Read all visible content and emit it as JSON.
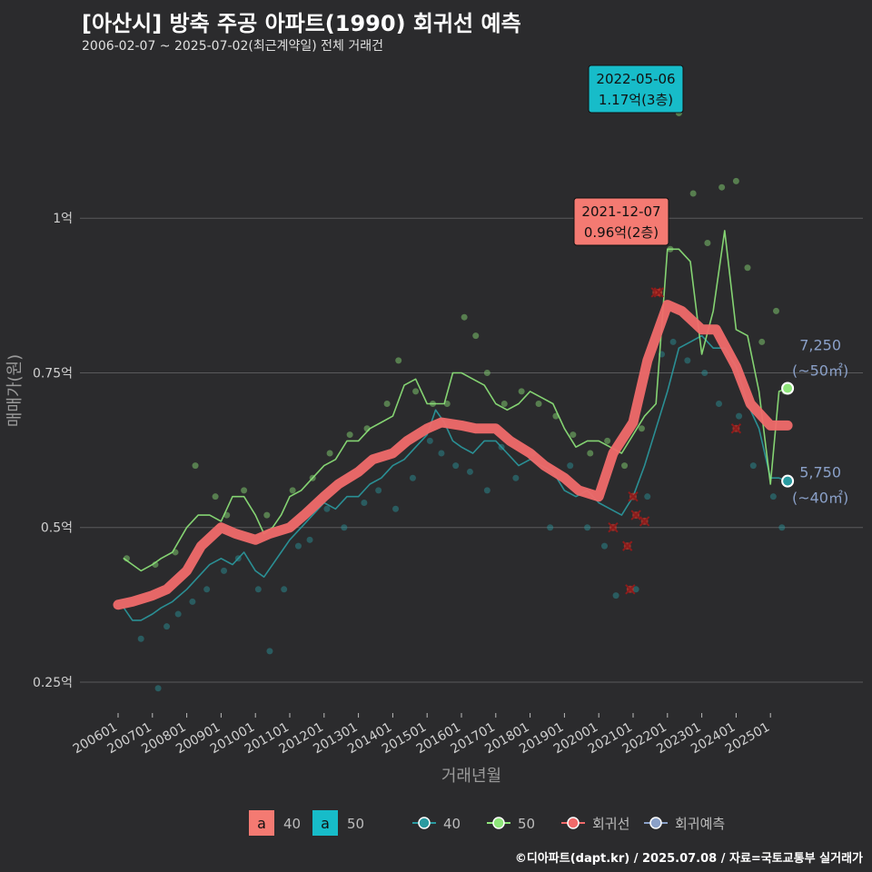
{
  "header": {
    "title": "[아산시] 방축 주공 아파트(1990) 회귀선 예측",
    "subtitle": "2006-02-07 ~ 2025-07-02(최근계약일) 전체 거래건"
  },
  "caption": "©디아파트(dapt.kr) / 2025.07.08 / 자료=국토교통부 실거래가",
  "colors": {
    "background": "#2b2b2d",
    "grid": "#5a5a5c",
    "series40": "#2a9aa0",
    "series50": "#8ee57a",
    "regression": "#f06a6a",
    "forecast": "#8aa0c8",
    "annotation40": "#f47a72",
    "annotation50": "#17bcc9"
  },
  "chart_data": {
    "type": "scatter",
    "xlabel": "거래년월",
    "ylabel": "매매가(원)",
    "x_range": [
      "2006-01",
      "2025-12"
    ],
    "ylim": [
      0.2,
      1.25
    ],
    "y_ticks": [
      {
        "value": 0.25,
        "label": "0.25억"
      },
      {
        "value": 0.5,
        "label": "0.5억"
      },
      {
        "value": 0.75,
        "label": "0.75억"
      },
      {
        "value": 1.0,
        "label": "1억"
      }
    ],
    "x_ticks": [
      "200601",
      "200701",
      "200801",
      "200901",
      "201001",
      "201101",
      "201201",
      "201301",
      "201401",
      "201501",
      "201601",
      "201701",
      "201801",
      "201901",
      "202001",
      "202101",
      "202201",
      "202301",
      "202401",
      "202501"
    ],
    "grid": true,
    "legend": {
      "position": "bottom",
      "fill_items": [
        {
          "key": "a",
          "label": "40",
          "color": "#f47a72"
        },
        {
          "key": "a",
          "label": "50",
          "color": "#17bcc9"
        }
      ],
      "line_items": [
        {
          "label": "40",
          "color": "#2a9aa0"
        },
        {
          "label": "50",
          "color": "#8ee57a"
        },
        {
          "label": "회귀선",
          "color": "#f06a6a"
        },
        {
          "label": "회귀예측",
          "color": "#8aa0c8"
        }
      ]
    },
    "series": [
      {
        "name": "40",
        "color": "#2a9aa0",
        "x": [
          "2006-03",
          "2006-06",
          "2006-09",
          "2007-01",
          "2007-04",
          "2007-08",
          "2008-01",
          "2008-05",
          "2008-09",
          "2009-01",
          "2009-05",
          "2009-09",
          "2010-01",
          "2010-04",
          "2010-07",
          "2010-10",
          "2011-01",
          "2011-05",
          "2011-09",
          "2012-01",
          "2012-05",
          "2012-09",
          "2013-01",
          "2013-05",
          "2013-09",
          "2014-01",
          "2014-05",
          "2014-09",
          "2015-01",
          "2015-04",
          "2015-07",
          "2015-10",
          "2016-01",
          "2016-05",
          "2016-09",
          "2017-01",
          "2017-05",
          "2017-09",
          "2018-01",
          "2018-05",
          "2018-09",
          "2019-01",
          "2019-05",
          "2019-09",
          "2020-01",
          "2020-05",
          "2020-09",
          "2021-01",
          "2021-05",
          "2021-09",
          "2022-01",
          "2022-05",
          "2022-09",
          "2023-01",
          "2023-05",
          "2023-09",
          "2024-01",
          "2024-05",
          "2024-09",
          "2025-01",
          "2025-04",
          "2025-07"
        ],
        "y": [
          0.37,
          0.35,
          0.35,
          0.36,
          0.37,
          0.38,
          0.4,
          0.42,
          0.44,
          0.45,
          0.44,
          0.46,
          0.43,
          0.42,
          0.44,
          0.46,
          0.48,
          0.5,
          0.52,
          0.54,
          0.53,
          0.55,
          0.55,
          0.57,
          0.58,
          0.6,
          0.61,
          0.63,
          0.65,
          0.69,
          0.67,
          0.64,
          0.63,
          0.62,
          0.64,
          0.64,
          0.62,
          0.6,
          0.61,
          0.6,
          0.59,
          0.56,
          0.55,
          0.56,
          0.54,
          0.53,
          0.52,
          0.55,
          0.6,
          0.66,
          0.72,
          0.79,
          0.8,
          0.81,
          0.79,
          0.79,
          0.76,
          0.7,
          0.66,
          0.58,
          0.58,
          0.575
        ]
      },
      {
        "name": "50",
        "color": "#8ee57a",
        "x": [
          "2006-03",
          "2006-06",
          "2006-09",
          "2007-01",
          "2007-04",
          "2007-08",
          "2008-01",
          "2008-05",
          "2008-09",
          "2009-01",
          "2009-05",
          "2009-09",
          "2010-01",
          "2010-04",
          "2010-07",
          "2010-10",
          "2011-01",
          "2011-05",
          "2011-09",
          "2012-01",
          "2012-05",
          "2012-09",
          "2013-01",
          "2013-05",
          "2013-09",
          "2014-01",
          "2014-05",
          "2014-09",
          "2015-01",
          "2015-04",
          "2015-07",
          "2015-10",
          "2016-01",
          "2016-05",
          "2016-09",
          "2017-01",
          "2017-05",
          "2017-09",
          "2018-01",
          "2018-05",
          "2018-09",
          "2019-01",
          "2019-05",
          "2019-09",
          "2020-01",
          "2020-05",
          "2020-09",
          "2021-01",
          "2021-05",
          "2021-09",
          "2022-01",
          "2022-05",
          "2022-09",
          "2023-01",
          "2023-05",
          "2023-09",
          "2024-01",
          "2024-05",
          "2024-09",
          "2025-01",
          "2025-04",
          "2025-07"
        ],
        "y": [
          0.45,
          0.44,
          0.43,
          0.44,
          0.45,
          0.46,
          0.5,
          0.52,
          0.52,
          0.51,
          0.55,
          0.55,
          0.52,
          0.49,
          0.5,
          0.52,
          0.55,
          0.56,
          0.58,
          0.6,
          0.61,
          0.64,
          0.64,
          0.66,
          0.67,
          0.68,
          0.73,
          0.74,
          0.7,
          0.7,
          0.7,
          0.75,
          0.75,
          0.74,
          0.73,
          0.7,
          0.69,
          0.7,
          0.72,
          0.71,
          0.7,
          0.66,
          0.63,
          0.64,
          0.64,
          0.63,
          0.62,
          0.65,
          0.68,
          0.7,
          0.95,
          0.95,
          0.93,
          0.78,
          0.85,
          0.98,
          0.82,
          0.81,
          0.72,
          0.57,
          0.72,
          0.725
        ]
      },
      {
        "name": "회귀선",
        "color": "#f06a6a",
        "x": [
          "2006-01",
          "2006-06",
          "2007-01",
          "2007-06",
          "2008-01",
          "2008-06",
          "2009-01",
          "2009-06",
          "2010-01",
          "2010-06",
          "2011-01",
          "2011-06",
          "2012-01",
          "2012-06",
          "2013-01",
          "2013-06",
          "2014-01",
          "2014-06",
          "2015-01",
          "2015-06",
          "2016-01",
          "2016-06",
          "2017-01",
          "2017-06",
          "2018-01",
          "2018-06",
          "2019-01",
          "2019-06",
          "2020-01",
          "2020-06",
          "2021-01",
          "2021-06",
          "2022-01",
          "2022-06",
          "2023-01",
          "2023-06",
          "2024-01",
          "2024-06",
          "2025-01",
          "2025-07"
        ],
        "y": [
          0.375,
          0.38,
          0.39,
          0.4,
          0.43,
          0.47,
          0.5,
          0.49,
          0.48,
          0.49,
          0.5,
          0.52,
          0.55,
          0.57,
          0.59,
          0.61,
          0.62,
          0.64,
          0.66,
          0.67,
          0.665,
          0.66,
          0.66,
          0.64,
          0.62,
          0.6,
          0.58,
          0.56,
          0.55,
          0.62,
          0.67,
          0.77,
          0.86,
          0.85,
          0.82,
          0.82,
          0.76,
          0.7,
          0.665,
          0.665
        ]
      }
    ],
    "scatter_points_40": [
      [
        "2006-09",
        0.32
      ],
      [
        "2007-03",
        0.24
      ],
      [
        "2007-06",
        0.34
      ],
      [
        "2007-10",
        0.36
      ],
      [
        "2008-03",
        0.38
      ],
      [
        "2008-08",
        0.4
      ],
      [
        "2009-02",
        0.43
      ],
      [
        "2009-07",
        0.45
      ],
      [
        "2010-02",
        0.4
      ],
      [
        "2010-06",
        0.3
      ],
      [
        "2010-11",
        0.4
      ],
      [
        "2011-04",
        0.47
      ],
      [
        "2011-08",
        0.48
      ],
      [
        "2012-02",
        0.53
      ],
      [
        "2012-08",
        0.5
      ],
      [
        "2013-03",
        0.54
      ],
      [
        "2013-08",
        0.56
      ],
      [
        "2014-02",
        0.53
      ],
      [
        "2014-08",
        0.58
      ],
      [
        "2015-02",
        0.64
      ],
      [
        "2015-06",
        0.62
      ],
      [
        "2015-11",
        0.6
      ],
      [
        "2016-04",
        0.59
      ],
      [
        "2016-10",
        0.56
      ],
      [
        "2017-03",
        0.63
      ],
      [
        "2017-08",
        0.58
      ],
      [
        "2018-02",
        0.62
      ],
      [
        "2018-08",
        0.5
      ],
      [
        "2019-03",
        0.6
      ],
      [
        "2019-09",
        0.5
      ],
      [
        "2020-03",
        0.47
      ],
      [
        "2020-07",
        0.39
      ],
      [
        "2021-02",
        0.4
      ],
      [
        "2021-06",
        0.55
      ],
      [
        "2021-11",
        0.78
      ],
      [
        "2022-03",
        0.8
      ],
      [
        "2022-08",
        0.77
      ],
      [
        "2023-02",
        0.75
      ],
      [
        "2023-07",
        0.7
      ],
      [
        "2024-02",
        0.68
      ],
      [
        "2024-07",
        0.6
      ],
      [
        "2025-02",
        0.55
      ],
      [
        "2025-05",
        0.5
      ]
    ],
    "scatter_points_50": [
      [
        "2006-04",
        0.45
      ],
      [
        "2007-02",
        0.44
      ],
      [
        "2007-09",
        0.46
      ],
      [
        "2008-04",
        0.6
      ],
      [
        "2008-11",
        0.55
      ],
      [
        "2009-03",
        0.52
      ],
      [
        "2009-09",
        0.56
      ],
      [
        "2010-05",
        0.52
      ],
      [
        "2011-02",
        0.56
      ],
      [
        "2011-09",
        0.58
      ],
      [
        "2012-03",
        0.62
      ],
      [
        "2012-10",
        0.65
      ],
      [
        "2013-04",
        0.66
      ],
      [
        "2013-11",
        0.7
      ],
      [
        "2014-03",
        0.77
      ],
      [
        "2014-09",
        0.72
      ],
      [
        "2015-03",
        0.7
      ],
      [
        "2015-08",
        0.7
      ],
      [
        "2016-02",
        0.84
      ],
      [
        "2016-06",
        0.81
      ],
      [
        "2016-10",
        0.75
      ],
      [
        "2017-04",
        0.7
      ],
      [
        "2017-10",
        0.72
      ],
      [
        "2018-04",
        0.7
      ],
      [
        "2018-10",
        0.68
      ],
      [
        "2019-04",
        0.65
      ],
      [
        "2019-10",
        0.62
      ],
      [
        "2020-04",
        0.64
      ],
      [
        "2020-10",
        0.6
      ],
      [
        "2021-04",
        0.66
      ],
      [
        "2021-10",
        0.88
      ],
      [
        "2022-02",
        0.95
      ],
      [
        "2022-05",
        1.17
      ],
      [
        "2022-10",
        1.04
      ],
      [
        "2023-03",
        0.96
      ],
      [
        "2023-08",
        1.05
      ],
      [
        "2024-01",
        1.06
      ],
      [
        "2024-05",
        0.92
      ],
      [
        "2024-10",
        0.8
      ],
      [
        "2025-03",
        0.85
      ],
      [
        "2025-06",
        0.72
      ]
    ],
    "cancelled_marks": [
      [
        "2020-06",
        0.5
      ],
      [
        "2020-11",
        0.47
      ],
      [
        "2020-12",
        0.4
      ],
      [
        "2021-01",
        0.55
      ],
      [
        "2021-02",
        0.52
      ],
      [
        "2021-05",
        0.51
      ],
      [
        "2021-09",
        0.88
      ],
      [
        "2021-10",
        0.88
      ],
      [
        "2024-01",
        0.66
      ]
    ],
    "annotations": [
      {
        "series": "40",
        "date": "2021-12-07",
        "value_label": "0.96억(2층)",
        "x": "2021-09",
        "y": 0.88
      },
      {
        "series": "50",
        "date": "2022-05-06",
        "value_label": "1.17억(3층)",
        "x": "2022-05",
        "y": 1.17
      }
    ],
    "end_labels": [
      {
        "series": "50",
        "price": "7,250",
        "area": "(~50㎡)",
        "x": "2025-07",
        "y": 0.725
      },
      {
        "series": "40",
        "price": "5,750",
        "area": "(~40㎡)",
        "x": "2025-07",
        "y": 0.575
      }
    ]
  }
}
